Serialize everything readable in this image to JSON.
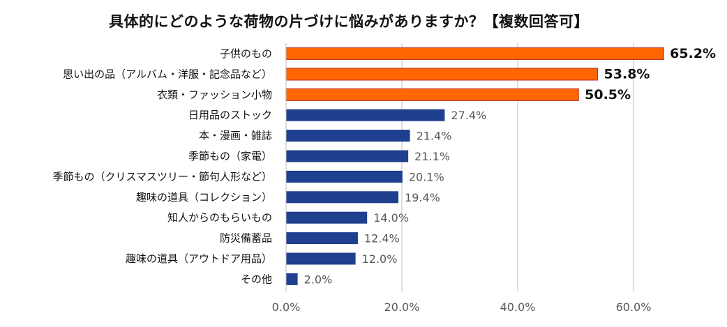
{
  "chart_data": {
    "type": "bar",
    "orientation": "horizontal",
    "title": "具体的にどのような荷物の片づけに悩みがありますか？【複数回答可】",
    "xlabel": "",
    "ylabel": "",
    "xlim": [
      0,
      70
    ],
    "xticks": [
      0,
      20,
      40,
      60
    ],
    "tick_format": "0.0%",
    "grid": true,
    "categories": [
      "子供のもの",
      "思い出の品（アルバム・洋服・記念品など）",
      "衣類・ファッション小物",
      "日用品のストック",
      "本・漫画・雑誌",
      "季節もの（家電）",
      "季節もの（クリスマスツリー・節句人形など）",
      "趣味の道具（コレクション）",
      "知人からのもらいもの",
      "防災備蓄品",
      "趣味の道具（アウトドア用品）",
      "その他"
    ],
    "values": [
      65.2,
      53.8,
      50.5,
      27.4,
      21.4,
      21.1,
      20.1,
      19.4,
      14.0,
      12.4,
      12.0,
      2.0
    ],
    "highlight_top_n": 3,
    "colors": {
      "highlight": "#ff6600",
      "highlight_border": "#c0392b",
      "normal": "#1f3f8f",
      "grid": "#bfbfbf",
      "label_highlight": "#111111",
      "label_normal": "#595959",
      "category_text": "#111111"
    }
  }
}
